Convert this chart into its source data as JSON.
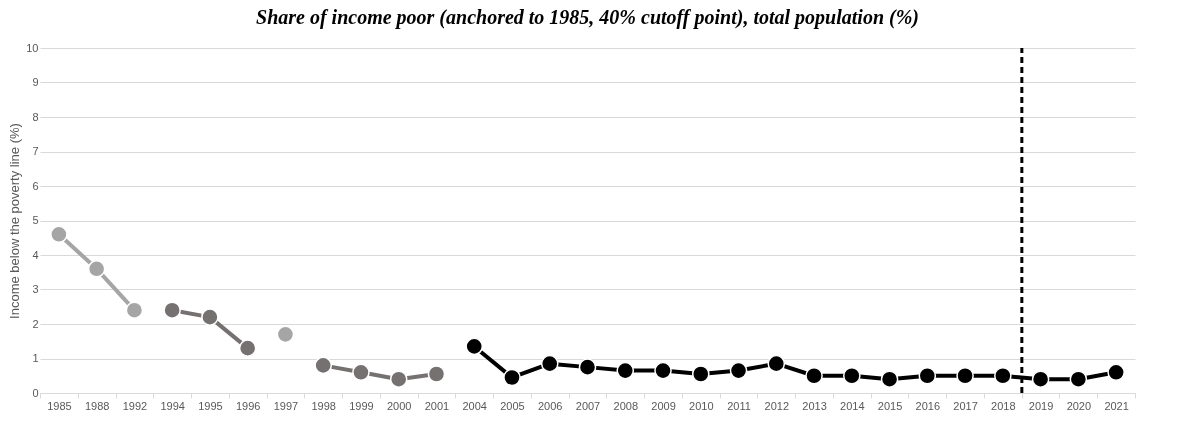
{
  "chart_data": {
    "type": "line",
    "title": "Share of income poor (anchored to 1985, 40% cutoff point), total population (%)",
    "ylabel": "Income below the poverty line (%)",
    "categories": [
      "1985",
      "1988",
      "1992",
      "1994",
      "1995",
      "1996",
      "1997",
      "1998",
      "1999",
      "2000",
      "2001",
      "2004",
      "2005",
      "2006",
      "2007",
      "2008",
      "2009",
      "2010",
      "2011",
      "2012",
      "2013",
      "2014",
      "2015",
      "2016",
      "2017",
      "2018",
      "2019",
      "2020",
      "2021"
    ],
    "series": [
      {
        "color": "#a5a5a5",
        "values": [
          4.6,
          3.6,
          2.4,
          null,
          null,
          null,
          1.7,
          null,
          null,
          null,
          null,
          null,
          null,
          null,
          null,
          null,
          null,
          null,
          null,
          null,
          null,
          null,
          null,
          null,
          null,
          null,
          null,
          null,
          null
        ]
      },
      {
        "color": "#767171",
        "values": [
          null,
          null,
          null,
          2.4,
          2.2,
          1.3,
          null,
          0.8,
          0.6,
          0.4,
          0.55,
          null,
          null,
          null,
          null,
          null,
          null,
          null,
          null,
          null,
          null,
          null,
          null,
          null,
          null,
          null,
          null,
          null,
          null
        ]
      },
      {
        "color": "#000000",
        "values": [
          null,
          null,
          null,
          null,
          null,
          null,
          null,
          null,
          null,
          null,
          null,
          1.35,
          0.45,
          0.85,
          0.75,
          0.65,
          0.65,
          0.55,
          0.65,
          0.85,
          0.5,
          0.5,
          0.4,
          0.5,
          0.5,
          0.5,
          0.4,
          0.4,
          0.6
        ]
      }
    ],
    "ylim": [
      0,
      10
    ],
    "yticks": [
      0,
      1,
      2,
      3,
      4,
      5,
      6,
      7,
      8,
      9,
      10
    ],
    "grid": "y",
    "marker": "circle",
    "line_style": "solid",
    "ref_lines": [
      {
        "axis": "x",
        "value": "2018",
        "color": "#000000",
        "line_style": "dashed"
      }
    ]
  }
}
